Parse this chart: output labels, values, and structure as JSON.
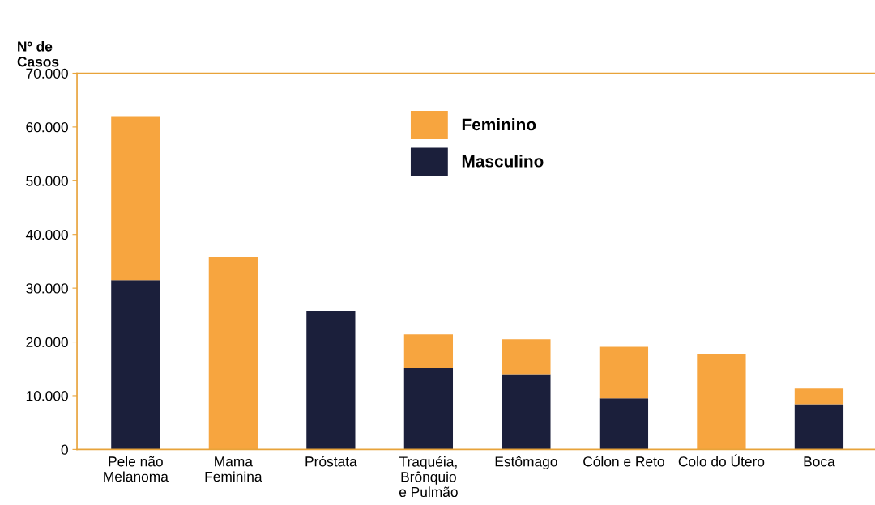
{
  "chart_data": {
    "type": "bar",
    "stacked": true,
    "ylabel": "Nº de\nCasos",
    "categories": [
      "Pele não\nMelanoma",
      "Mama\nFeminina",
      "Próstata",
      "Traquéia,\nBrônquio\ne Pulmão",
      "Estômago",
      "Cólon e Reto",
      "Colo do Útero",
      "Boca"
    ],
    "series": [
      {
        "name": "Masculino",
        "color": "#1b1f3b",
        "values": [
          31500,
          null,
          25800,
          15100,
          14000,
          9500,
          null,
          8400
        ]
      },
      {
        "name": "Feminino",
        "color": "#f7a53f",
        "values": [
          30500,
          35800,
          null,
          6300,
          6500,
          9600,
          17800,
          2900
        ]
      }
    ],
    "ylim": [
      0,
      70000
    ],
    "yticks": [
      {
        "value": 0,
        "label": "0"
      },
      {
        "value": 10000,
        "label": "10.000"
      },
      {
        "value": 20000,
        "label": "20.000"
      },
      {
        "value": 30000,
        "label": "30.000"
      },
      {
        "value": 40000,
        "label": "40.000"
      },
      {
        "value": 50000,
        "label": "50.000"
      },
      {
        "value": 60000,
        "label": "60.000"
      },
      {
        "value": 70000,
        "label": "70.000"
      }
    ],
    "grid": false,
    "legend": "top"
  }
}
